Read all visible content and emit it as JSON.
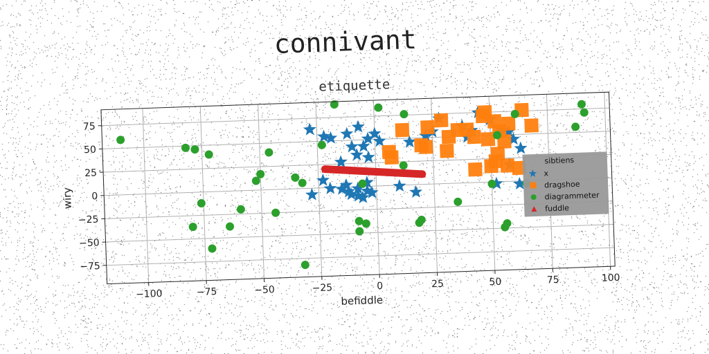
{
  "suptitle": "connivant",
  "chart_data": {
    "type": "scatter",
    "title": "etiquette",
    "xlabel": "befiddle",
    "ylabel": "wiry",
    "xlim": [
      -118,
      102
    ],
    "ylim": [
      -95,
      92
    ],
    "xticks": [
      -100,
      -75,
      -50,
      -25,
      0,
      25,
      50,
      75,
      100
    ],
    "yticks": [
      75,
      50,
      25,
      0,
      -25,
      -50,
      -75
    ],
    "xtick_labels": [
      "−100",
      "−75",
      "−50",
      "−25",
      "0",
      "25",
      "50",
      "75",
      "100"
    ],
    "ytick_labels": [
      "75",
      "50",
      "25",
      "0",
      "−25",
      "−50",
      "−75"
    ],
    "grid": true,
    "legend": {
      "title": "sibtiens",
      "position": "right",
      "background": "#999999"
    },
    "series": [
      {
        "name": "x",
        "marker": "star",
        "color": "#1f77b4",
        "points": [
          [
            -28,
            63
          ],
          [
            -22,
            55
          ],
          [
            -19,
            53
          ],
          [
            -12,
            57
          ],
          [
            -7,
            64
          ],
          [
            -3,
            51
          ],
          [
            -10,
            43
          ],
          [
            -5,
            43
          ],
          [
            0,
            56
          ],
          [
            2,
            48
          ],
          [
            -8,
            34
          ],
          [
            -3,
            31
          ],
          [
            -15,
            27
          ],
          [
            -23,
            8
          ],
          [
            -28,
            -7
          ],
          [
            -15,
            -2
          ],
          [
            -13,
            2
          ],
          [
            -11,
            -8
          ],
          [
            -8,
            -2
          ],
          [
            -6,
            -12
          ],
          [
            -4,
            4
          ],
          [
            -4,
            -5
          ],
          [
            -2,
            -7
          ],
          [
            -20,
            -1
          ],
          [
            -12,
            -5
          ],
          [
            -8,
            -10
          ],
          [
            10,
            -1
          ],
          [
            17,
            -8
          ],
          [
            15,
            46
          ],
          [
            22,
            52
          ],
          [
            25,
            56
          ],
          [
            28,
            70
          ],
          [
            38,
            61
          ],
          [
            42,
            56
          ],
          [
            40,
            49
          ],
          [
            45,
            75
          ],
          [
            50,
            67
          ],
          [
            55,
            55
          ],
          [
            58,
            53
          ],
          [
            60,
            45
          ],
          [
            63,
            35
          ],
          [
            62,
            -3
          ],
          [
            52,
            -2
          ],
          [
            58,
            18
          ]
        ]
      },
      {
        "name": "dragshoe",
        "marker": "square",
        "color": "#ff7f0e",
        "points": [
          [
            12,
            59
          ],
          [
            23,
            61
          ],
          [
            29,
            68
          ],
          [
            32,
            50
          ],
          [
            36,
            57
          ],
          [
            47,
            71
          ],
          [
            48,
            75
          ],
          [
            52,
            65
          ],
          [
            54,
            54
          ],
          [
            58,
            62
          ],
          [
            64,
            76
          ],
          [
            68,
            59
          ],
          [
            43,
            49
          ],
          [
            49,
            46
          ],
          [
            6,
            36
          ],
          [
            7,
            30
          ],
          [
            22,
            40
          ],
          [
            31,
            35
          ],
          [
            43,
            14
          ],
          [
            50,
            17
          ],
          [
            52,
            22
          ],
          [
            57,
            17
          ],
          [
            62,
            14
          ],
          [
            53,
            30
          ],
          [
            56,
            43
          ],
          [
            20,
            42
          ],
          [
            40,
            57
          ]
        ]
      },
      {
        "name": "diagrammeter",
        "marker": "circle",
        "color": "#2ca02c",
        "points": [
          [
            -110,
            59
          ],
          [
            -82,
            48
          ],
          [
            -78,
            46
          ],
          [
            -72,
            40
          ],
          [
            -59,
            -20
          ],
          [
            -52,
            10
          ],
          [
            -50,
            17
          ],
          [
            -46,
            40
          ],
          [
            -44,
            -25
          ],
          [
            -35,
            12
          ],
          [
            -32,
            6
          ],
          [
            -32,
            -82
          ],
          [
            -23,
            46
          ],
          [
            -17,
            89
          ],
          [
            -8,
            -37
          ],
          [
            -8,
            -48
          ],
          [
            -6,
            3
          ],
          [
            -5,
            -40
          ],
          [
            2,
            84
          ],
          [
            13,
            76
          ],
          [
            12,
            21
          ],
          [
            18,
            -41
          ],
          [
            19,
            -38
          ],
          [
            35,
            -20
          ],
          [
            50,
            -2
          ],
          [
            53,
            50
          ],
          [
            55,
            -49
          ],
          [
            56,
            -45
          ],
          [
            61,
            72
          ],
          [
            65,
            -3
          ],
          [
            87,
            56
          ],
          [
            90,
            80
          ],
          [
            91,
            71
          ],
          [
            -76,
            -12
          ],
          [
            -80,
            -37
          ],
          [
            -72,
            -61
          ],
          [
            -64,
            -38
          ]
        ]
      },
      {
        "name": "fuddle",
        "marker": "triangle",
        "color": "#d62728",
        "segment": {
          "from": [
            -22,
            20
          ],
          "to": [
            20,
            11
          ]
        },
        "points": [
          [
            -22,
            20
          ],
          [
            -18,
            19.1
          ],
          [
            -14,
            18.3
          ],
          [
            -10,
            17.4
          ],
          [
            -6,
            16.5
          ],
          [
            -2,
            15.7
          ],
          [
            2,
            14.8
          ],
          [
            6,
            14
          ],
          [
            10,
            13.1
          ],
          [
            14,
            12.3
          ],
          [
            17,
            11.6
          ],
          [
            20,
            11
          ]
        ]
      }
    ]
  }
}
